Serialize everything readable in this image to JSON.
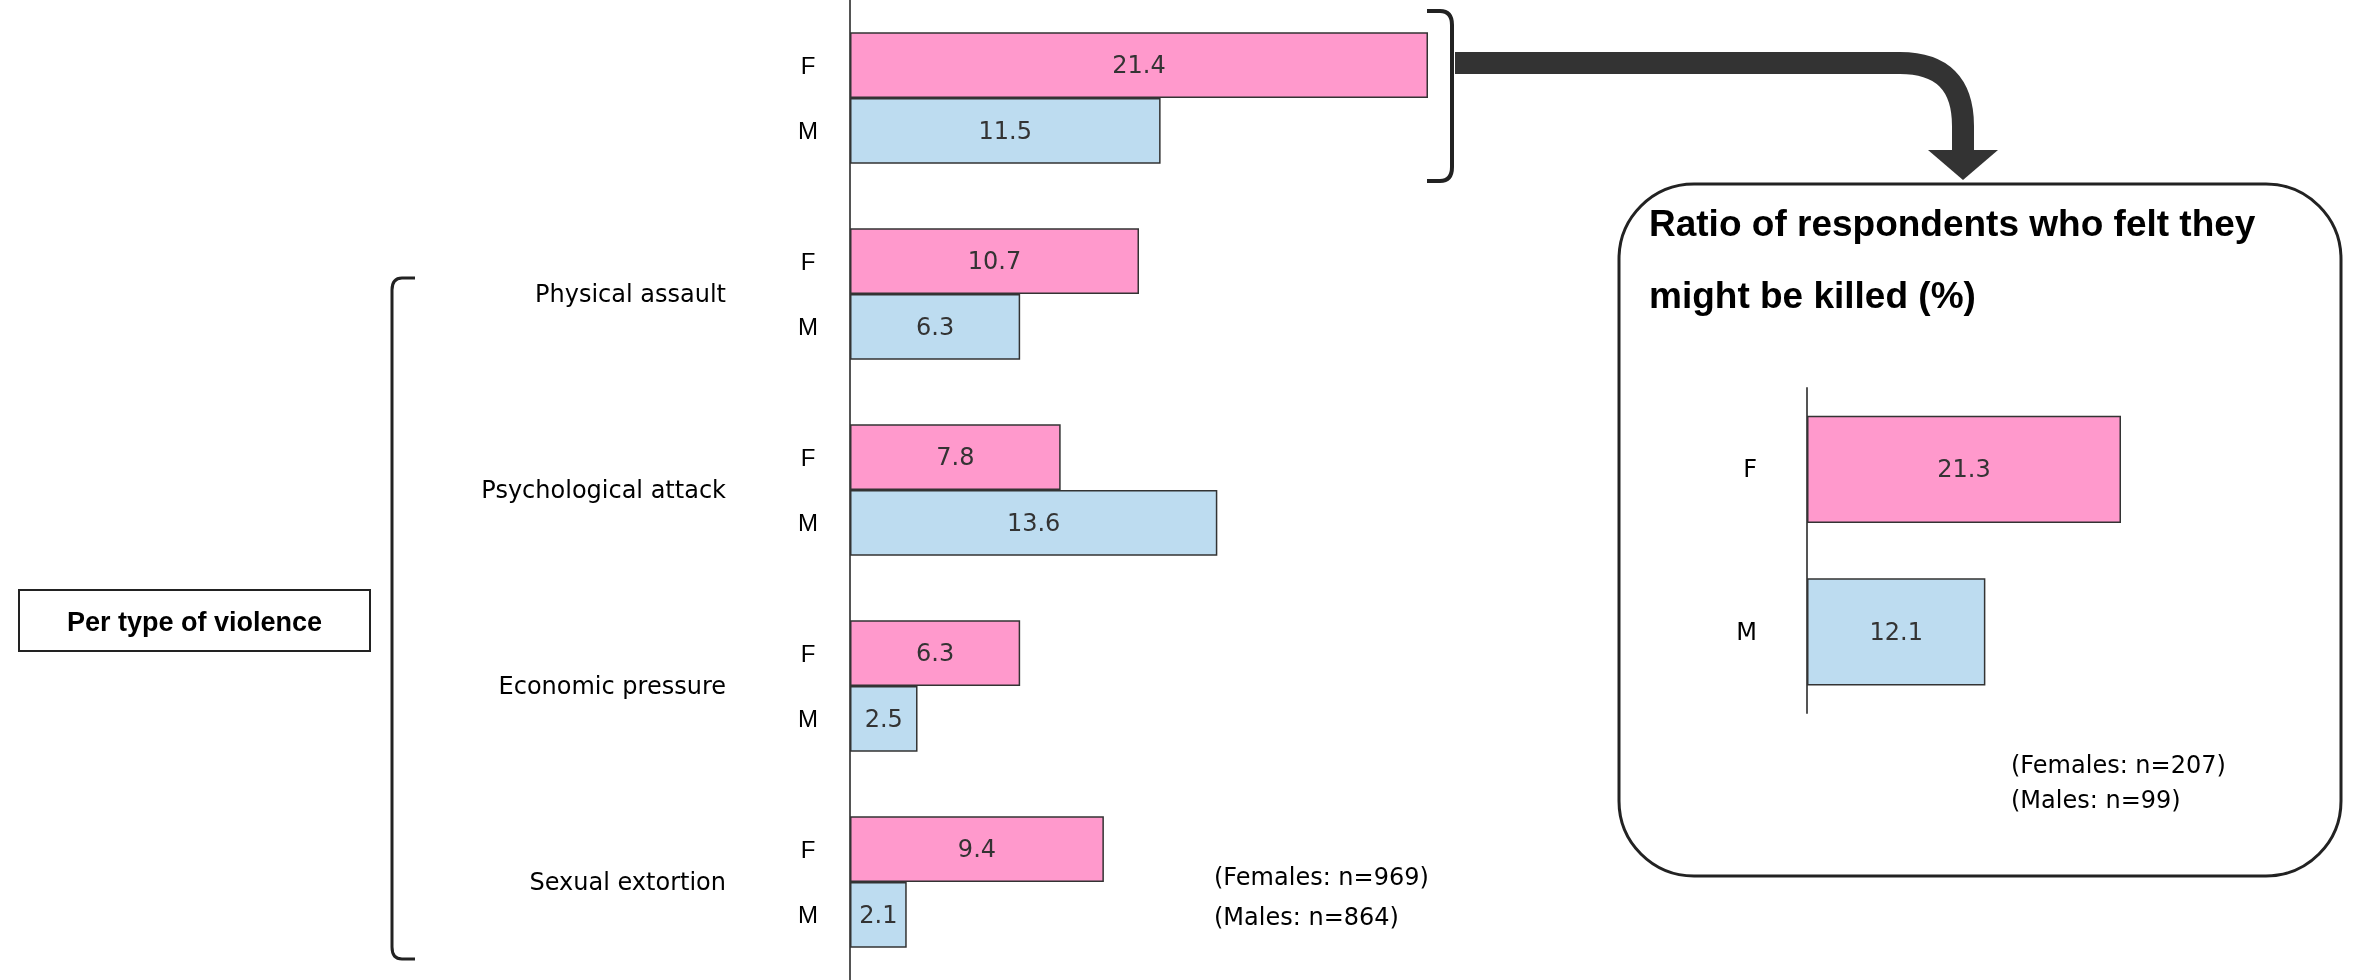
{
  "chart_data": [
    {
      "type": "bar",
      "orientation": "horizontal",
      "categories": [
        null,
        "Physical assault",
        "Psychological attack",
        "Economic pressure",
        "Sexual extortion"
      ],
      "series": [
        {
          "name": "F",
          "color": "#ff99cc",
          "values": [
            21.4,
            10.7,
            7.8,
            6.3,
            9.4
          ]
        },
        {
          "name": "M",
          "color": "#bddcf0",
          "values": [
            11.5,
            6.3,
            13.6,
            2.5,
            2.1
          ]
        }
      ],
      "data_labels": true,
      "annotations": [
        "Per type of violence",
        "(Females: n=969)",
        "(Males: n=864)"
      ]
    },
    {
      "type": "bar",
      "orientation": "horizontal",
      "title": "Ratio of respondents who felt they might be killed (%)",
      "categories": [
        "F",
        "M"
      ],
      "values": [
        21.3,
        12.1
      ],
      "colors": [
        "#ff99cc",
        "#bddcf0"
      ],
      "data_labels": true,
      "annotations": [
        "(Females: n=207)",
        "(Males: n=99)"
      ]
    }
  ]
}
